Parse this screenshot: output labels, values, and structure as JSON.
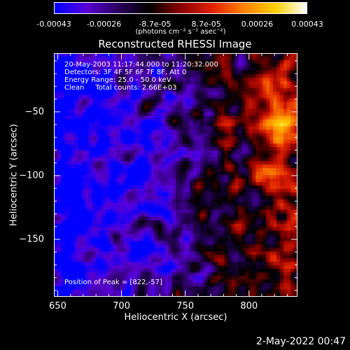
{
  "colorbar": {
    "tick_labels": [
      "-0.00043",
      "-0.00026",
      "-8.7e-05",
      "8.7e-05",
      "0.00026",
      "0.00043"
    ],
    "tick_values": [
      -0.00043,
      -0.00026,
      -8.7e-05,
      8.7e-05,
      0.00026,
      0.00043
    ],
    "range": [
      -0.00043,
      0.00043
    ],
    "units": "(photons cm⁻² s⁻¹ asec⁻²)",
    "colors": [
      "#0000ff",
      "#5a00d8",
      "#2a0060",
      "#000000",
      "#8a0000",
      "#e02000",
      "#ff8000",
      "#ffd000",
      "#ffffff"
    ]
  },
  "chart_data": {
    "type": "heatmap",
    "title": "Reconstructed RHESSI Image",
    "xlabel": "Heliocentric X (arcsec)",
    "ylabel": "Heliocentric Y (arcsec)",
    "xlim": [
      647,
      838
    ],
    "ylim": [
      -195,
      -4
    ],
    "x_ticks": [
      650,
      700,
      750,
      800
    ],
    "y_ticks": [
      -50,
      -100,
      -150
    ],
    "colormap": "rhessi blue-black-red-yellow-white",
    "annotations": [
      "20-May-2003 11:17:44.000 to 11:20:32.000",
      "Detectors: 3F 4F 5F 6F 7F 8F, Att 0",
      "Energy Range: 25.0 - 50.0 keV",
      "Clean     Total counts: 2.66E+03"
    ],
    "peak_label": "Position of Peak = [822,-57]",
    "peak_position": [
      822,
      -57
    ]
  },
  "footer": {
    "timestamp": "2-May-2022 00:47"
  }
}
